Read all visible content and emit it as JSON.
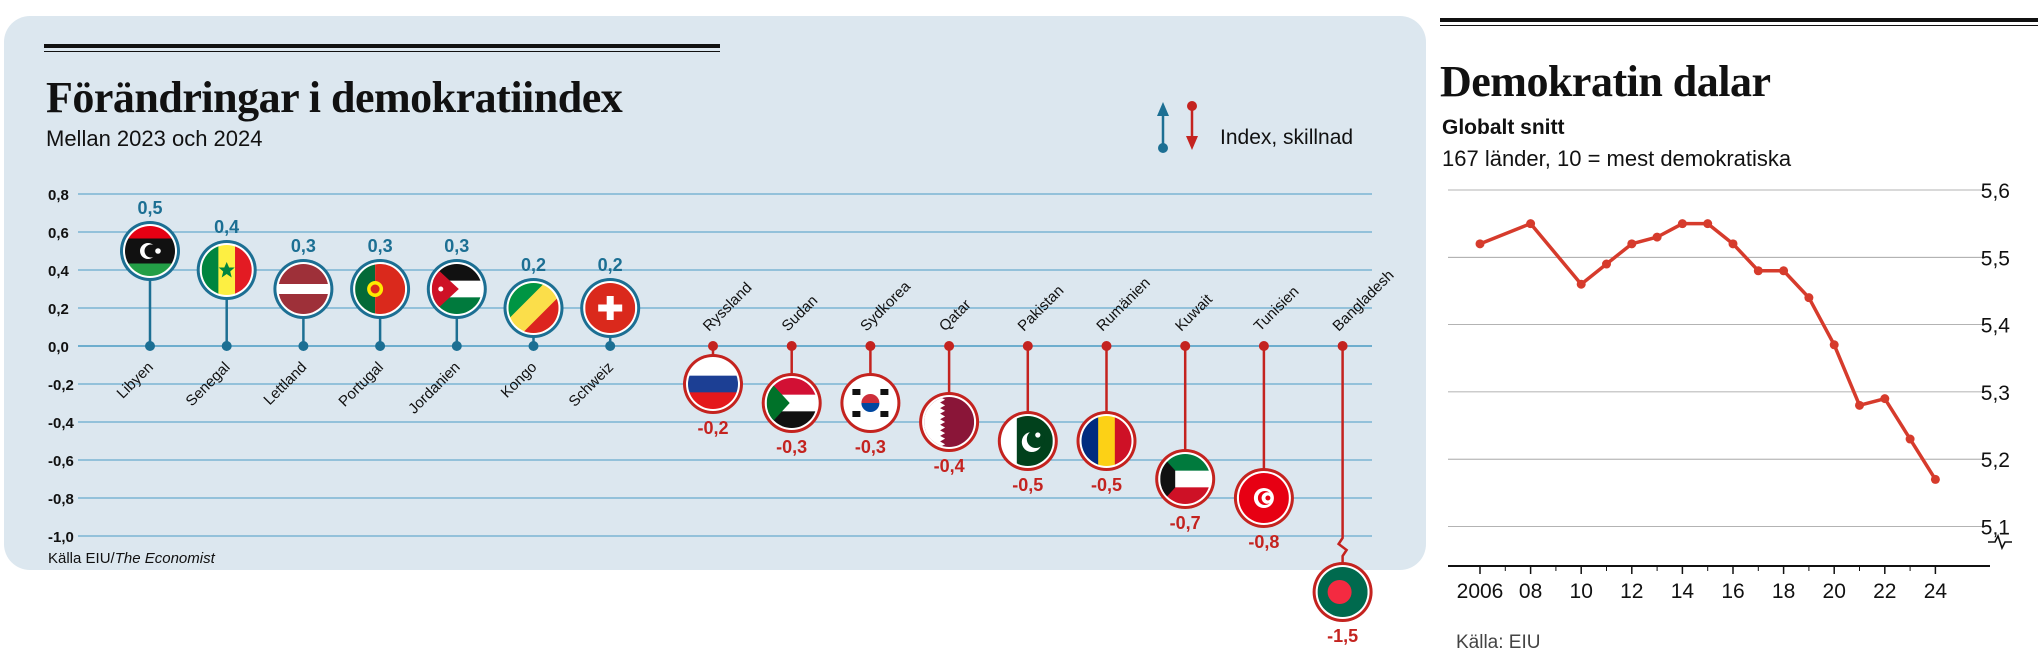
{
  "left_chart": {
    "title": "Förändringar i demokratiindex",
    "subtitle": "Mellan 2023 och 2024",
    "legend_label": "Index, skillnad",
    "source_prefix": "Källa EIU/",
    "source_italic": "The Economist"
  },
  "right_chart": {
    "title": "Demokratin dalar",
    "subtitle_bold": "Globalt snitt",
    "subtitle": "167 länder, 10 = mest demokratiska",
    "source": "Källa: EIU"
  },
  "colors": {
    "positive": "#1c6f93",
    "negative": "#c4231f",
    "grid_left": "#4a9bc4",
    "line": "#d63b2c",
    "panel": "#dce7ef"
  },
  "chart_data": [
    {
      "type": "bar",
      "title": "Förändringar i demokratiindex",
      "subtitle": "Mellan 2023 och 2024",
      "ylim": [
        -1.0,
        0.8
      ],
      "y_ticks": [
        "0,8",
        "0,6",
        "0,4",
        "0,2",
        "0,0",
        "-0,2",
        "-0,4",
        "-0,6",
        "-0,8",
        "-1,0"
      ],
      "y_tick_values": [
        0.8,
        0.6,
        0.4,
        0.2,
        0.0,
        -0.2,
        -0.4,
        -0.6,
        -0.8,
        -1.0
      ],
      "axis_break": "Bangladesh",
      "grid": true,
      "legend": "top-right",
      "categories": [
        "Libyen",
        "Senegal",
        "Lettland",
        "Portugal",
        "Jordanien",
        "Kongo",
        "Schweiz",
        "Ryssland",
        "Sudan",
        "Sydkorea",
        "Qatar",
        "Pakistan",
        "Rumänien",
        "Kuwait",
        "Tunisien",
        "Bangladesh"
      ],
      "values": [
        0.5,
        0.4,
        0.3,
        0.3,
        0.3,
        0.2,
        0.2,
        -0.2,
        -0.3,
        -0.3,
        -0.4,
        -0.5,
        -0.5,
        -0.7,
        -0.8,
        -1.5
      ],
      "value_labels": [
        "0,5",
        "0,4",
        "0,3",
        "0,3",
        "0,3",
        "0,2",
        "0,2",
        "-0,2",
        "-0,3",
        "-0,3",
        "-0,4",
        "-0,5",
        "-0,5",
        "-0,7",
        "-0,8",
        "-1,5"
      ],
      "flag_icons": [
        "libya-flag-icon",
        "senegal-flag-icon",
        "latvia-flag-icon",
        "portugal-flag-icon",
        "jordan-flag-icon",
        "congo-flag-icon",
        "switzerland-flag-icon",
        "russia-flag-icon",
        "sudan-flag-icon",
        "south-korea-flag-icon",
        "qatar-flag-icon",
        "pakistan-flag-icon",
        "romania-flag-icon",
        "kuwait-flag-icon",
        "tunisia-flag-icon",
        "bangladesh-flag-icon"
      ]
    },
    {
      "type": "line",
      "title": "Demokratin dalar",
      "subtitle": "Globalt snitt",
      "x": [
        2006,
        2008,
        2010,
        2011,
        2012,
        2013,
        2014,
        2015,
        2016,
        2017,
        2018,
        2019,
        2020,
        2021,
        2022,
        2023,
        2024
      ],
      "series": [
        {
          "values": [
            5.52,
            5.55,
            5.46,
            5.49,
            5.52,
            5.53,
            5.55,
            5.55,
            5.52,
            5.48,
            5.48,
            5.44,
            5.37,
            5.28,
            5.29,
            5.23,
            5.17
          ]
        }
      ],
      "ylim": [
        5.1,
        5.6
      ],
      "y_ticks": [
        "5,6",
        "5,5",
        "5,4",
        "5,3",
        "5,2",
        "5,1"
      ],
      "y_tick_values": [
        5.6,
        5.5,
        5.4,
        5.3,
        5.2,
        5.1
      ],
      "x_ticks": [
        "2006",
        "08",
        "10",
        "12",
        "14",
        "16",
        "18",
        "20",
        "22",
        "24"
      ],
      "x_tick_values": [
        2006,
        2008,
        2010,
        2012,
        2014,
        2016,
        2018,
        2020,
        2022,
        2024
      ],
      "axis_break": true,
      "grid": true
    }
  ]
}
